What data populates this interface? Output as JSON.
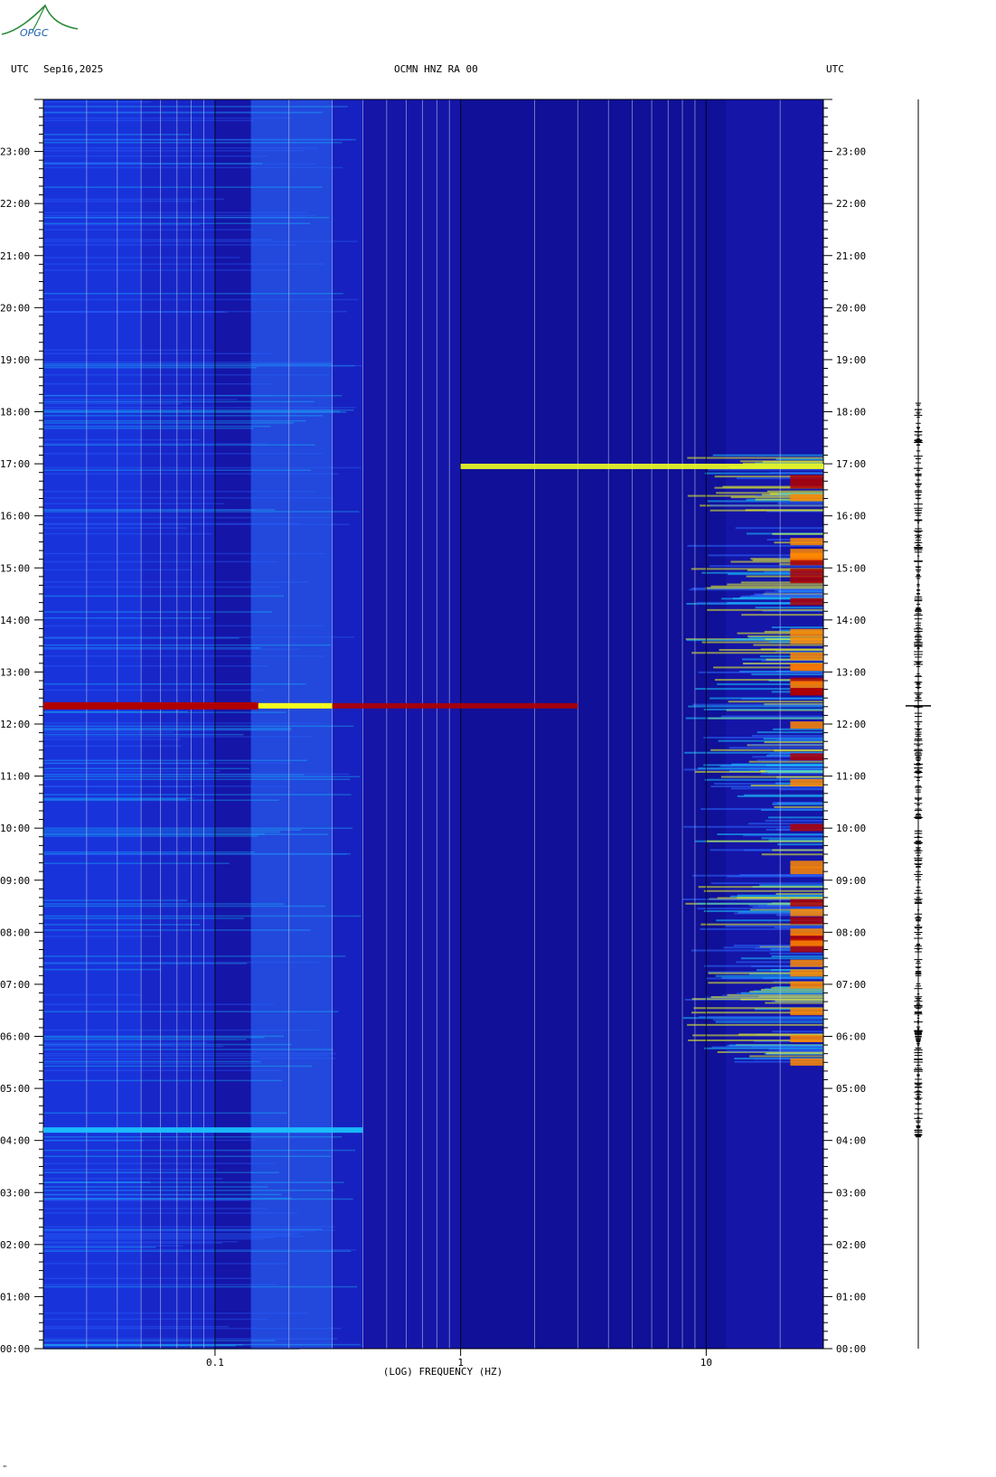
{
  "header": {
    "logo_text": "OPGC",
    "left_tz": "UTC",
    "date": "Sep16,2025",
    "station": "OCMN HNZ RA 00",
    "right_tz": "UTC",
    "corner_mark": "\""
  },
  "chart_data": {
    "type": "heatmap",
    "title": "OCMN HNZ RA 00",
    "xlabel": "(LOG) FREQUENCY (HZ)",
    "ylabel": "UTC",
    "x_scale": "log",
    "xlim": [
      0.02,
      30
    ],
    "ylim": [
      0,
      24
    ],
    "x_ticks": [
      {
        "value": 0.1,
        "label": "0.1"
      },
      {
        "value": 1,
        "label": "1"
      },
      {
        "value": 10,
        "label": "10"
      }
    ],
    "y_ticks": [
      "00:00",
      "01:00",
      "02:00",
      "03:00",
      "04:00",
      "05:00",
      "06:00",
      "07:00",
      "08:00",
      "09:00",
      "10:00",
      "11:00",
      "12:00",
      "13:00",
      "14:00",
      "15:00",
      "16:00",
      "17:00",
      "18:00",
      "19:00",
      "20:00",
      "21:00",
      "22:00",
      "23:00"
    ],
    "colormap": [
      "#0a0a7a",
      "#1a2ed6",
      "#2b6bff",
      "#19c8ff",
      "#f0ff20",
      "#ff8800",
      "#b00000"
    ],
    "background_color": "#1515a8",
    "events": [
      {
        "label": "broadband event",
        "time_hours": 12.35,
        "freq_hz": [
          0.02,
          3
        ],
        "level": 6
      },
      {
        "label": "band",
        "time_hours": 4.2,
        "freq_hz": [
          0.02,
          0.4
        ],
        "level": 3
      },
      {
        "label": "band",
        "time_hours": 16.95,
        "freq_hz": [
          1,
          30
        ],
        "level": 4
      }
    ],
    "high_freq_activity_hours": [
      5.5,
      17.2
    ],
    "grid": true
  }
}
